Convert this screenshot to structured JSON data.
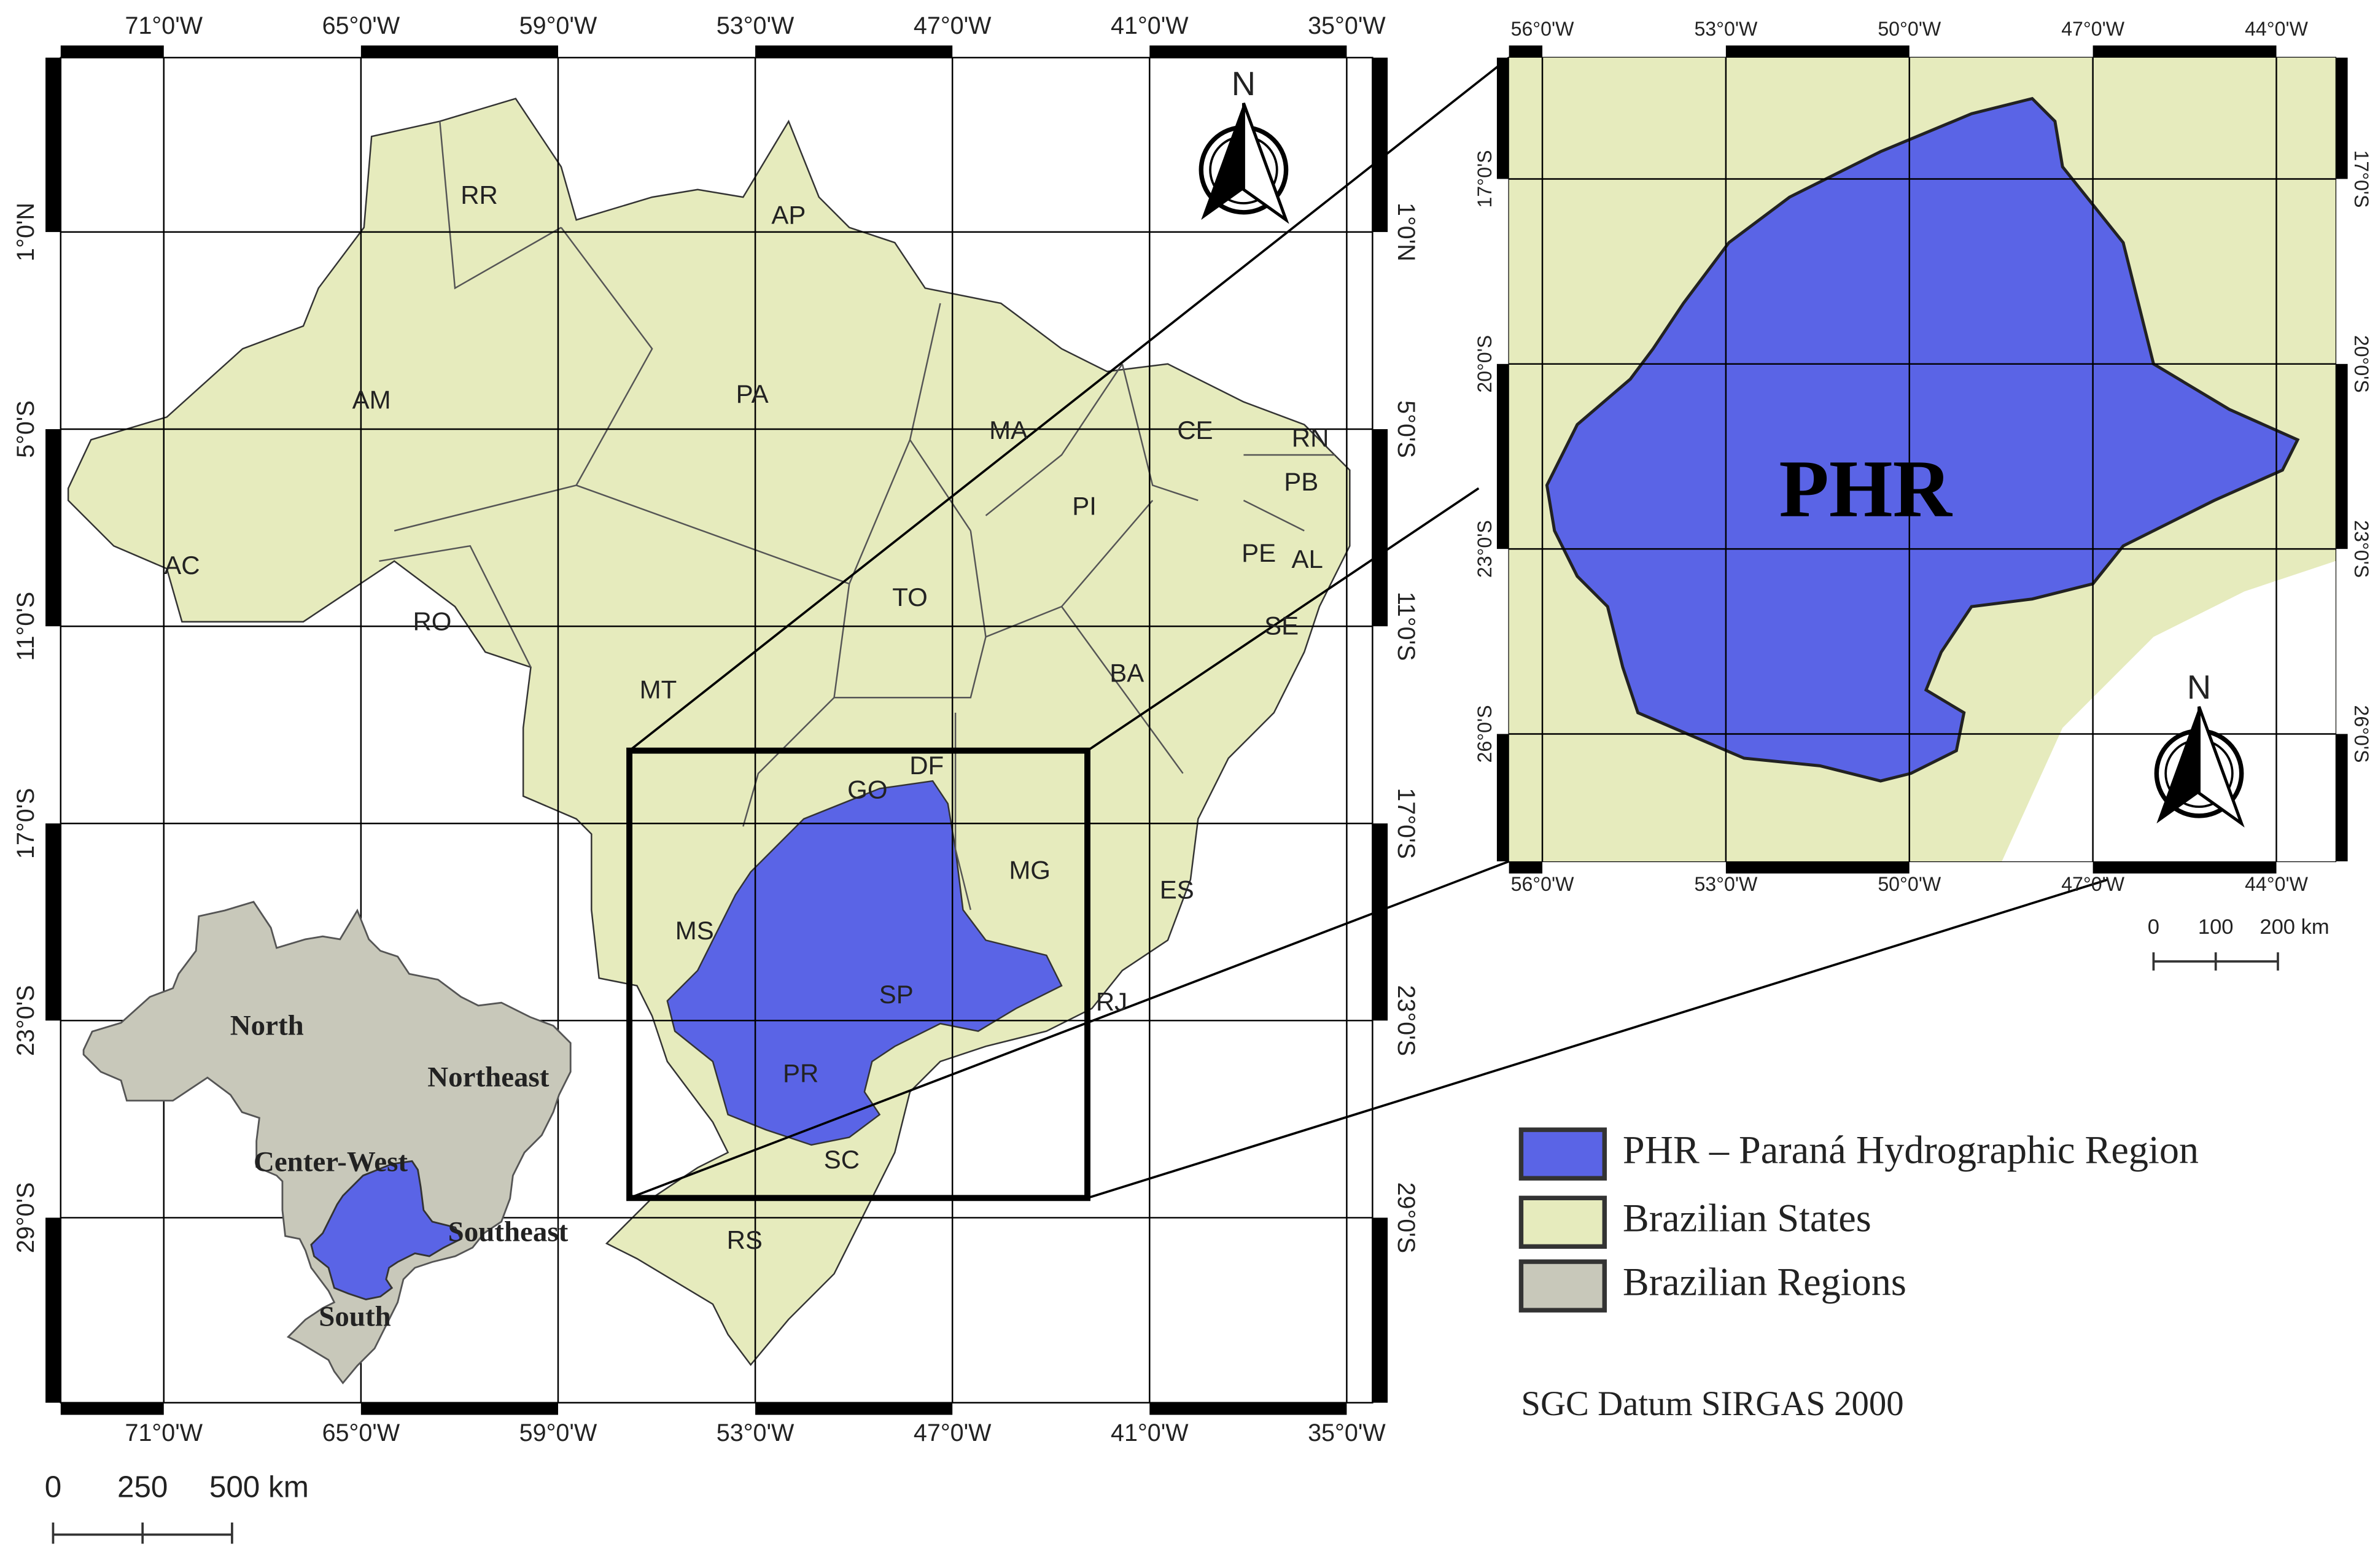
{
  "main_map": {
    "lon_labels": [
      "71°0'W",
      "65°0'W",
      "59°0'W",
      "53°0'W",
      "47°0'W",
      "41°0'W",
      "35°0'W"
    ],
    "lat_labels": [
      "1°0'N",
      "5°0'S",
      "11°0'S",
      "17°0'S",
      "23°0'S",
      "29°0'S"
    ],
    "states": [
      "RR",
      "AP",
      "AM",
      "PA",
      "MA",
      "CE",
      "RN",
      "PB",
      "PI",
      "PE",
      "AL",
      "AC",
      "RO",
      "TO",
      "SE",
      "MT",
      "BA",
      "DF",
      "GO",
      "MG",
      "ES",
      "MS",
      "SP",
      "RJ",
      "PR",
      "SC",
      "RS"
    ],
    "north": "N",
    "scale": [
      "0",
      "250",
      "500 km"
    ]
  },
  "regions_map": {
    "labels": [
      "North",
      "Northeast",
      "Center-West",
      "Southeast",
      "South"
    ]
  },
  "zoom_map": {
    "lon_labels": [
      "56°0'W",
      "53°0'W",
      "50°0'W",
      "47°0'W",
      "44°0'W"
    ],
    "lat_labels": [
      "17°0'S",
      "20°0'S",
      "23°0'S",
      "26°0'S"
    ],
    "title": "PHR",
    "north": "N",
    "scale": [
      "0",
      "100",
      "200 km"
    ]
  },
  "legend": [
    {
      "label": "PHR – Paraná Hydrographic Region",
      "color": "#5a64e6"
    },
    {
      "label": "Brazilian States",
      "color": "#e6ebbd"
    },
    {
      "label": "Brazilian Regions",
      "color": "#c8c8ba"
    }
  ],
  "datum": "SGC Datum SIRGAS 2000"
}
